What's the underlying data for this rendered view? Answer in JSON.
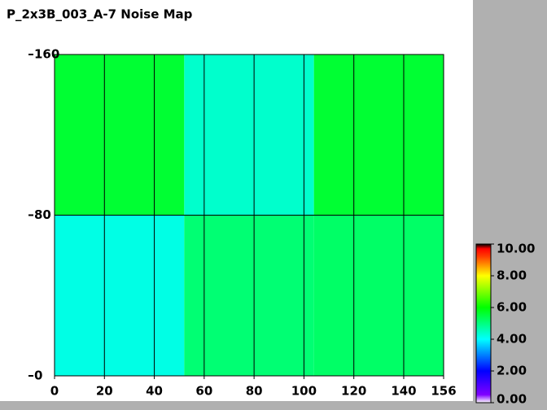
{
  "chart_data": {
    "type": "heatmap",
    "title": "P_2x3B_003_A-7 Noise Map",
    "xlim": [
      0,
      156
    ],
    "ylim": [
      0,
      160
    ],
    "xticks": [
      0,
      20,
      40,
      60,
      80,
      100,
      120,
      140,
      156
    ],
    "yticks": [
      0,
      80,
      160
    ],
    "grid_x": [
      20,
      40,
      60,
      80,
      100,
      120,
      140
    ],
    "grid_y": [
      80
    ],
    "regions": [
      {
        "x": [
          0,
          52
        ],
        "y": [
          80,
          160
        ],
        "value": 5.6
      },
      {
        "x": [
          0,
          52
        ],
        "y": [
          0,
          80
        ],
        "value": 4.2
      },
      {
        "x": [
          52,
          104
        ],
        "y": [
          80,
          160
        ],
        "value": 4.4
      },
      {
        "x": [
          52,
          104
        ],
        "y": [
          0,
          80
        ],
        "value": 5.1
      },
      {
        "x": [
          104,
          156
        ],
        "y": [
          80,
          160
        ],
        "value": 5.6
      },
      {
        "x": [
          104,
          156
        ],
        "y": [
          0,
          80
        ],
        "value": 5.2
      }
    ],
    "clim": [
      0,
      10
    ],
    "colorscale": [
      [
        0,
        "#ffffff"
      ],
      [
        0.5,
        "#8000ff"
      ],
      [
        2,
        "#0000ff"
      ],
      [
        4,
        "#00ffff"
      ],
      [
        6,
        "#00ff00"
      ],
      [
        8,
        "#ffff00"
      ],
      [
        9.2,
        "#ff4000"
      ],
      [
        9.7,
        "#ff0000"
      ],
      [
        10,
        "#000000"
      ]
    ],
    "cticks": [
      {
        "value": 0,
        "label": "0.00"
      },
      {
        "value": 2,
        "label": "2.00"
      },
      {
        "value": 4,
        "label": "4.00"
      },
      {
        "value": 6,
        "label": "6.00"
      },
      {
        "value": 8,
        "label": "8.00"
      },
      {
        "value": 10,
        "label": "10.00"
      }
    ]
  }
}
